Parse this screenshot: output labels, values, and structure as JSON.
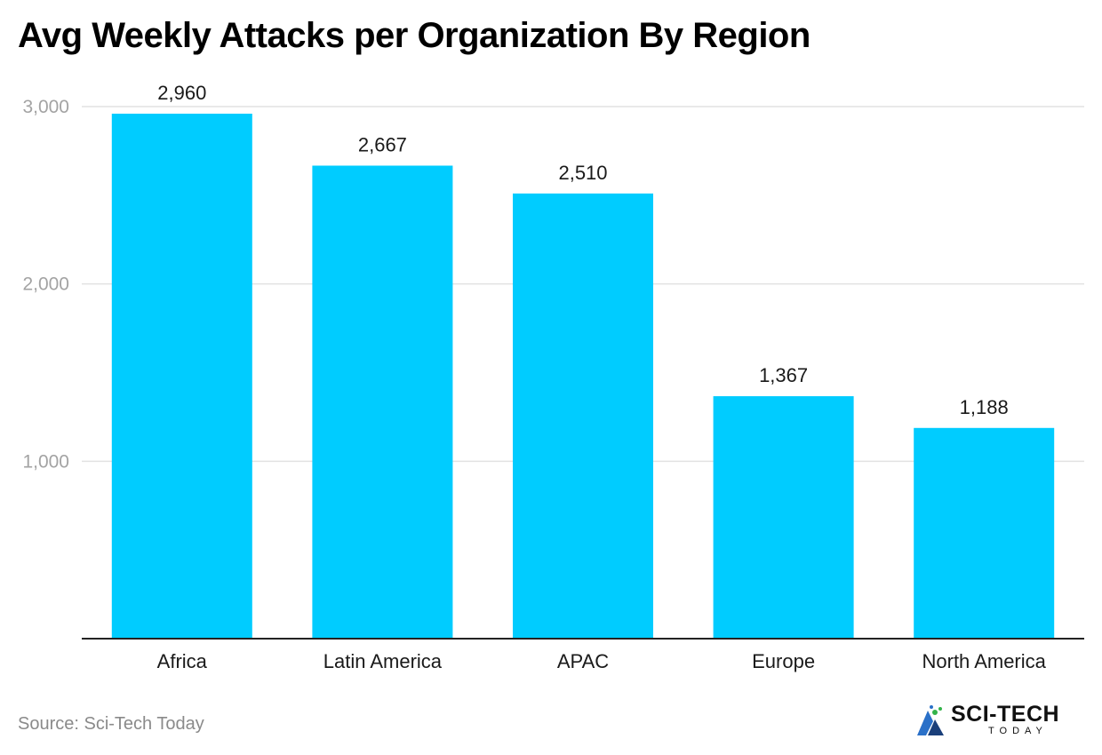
{
  "chart_data": {
    "type": "bar",
    "title": "Avg Weekly Attacks per Organization By Region",
    "categories": [
      "Africa",
      "Latin America",
      "APAC",
      "Europe",
      "North America"
    ],
    "values": [
      2960,
      2667,
      2510,
      1367,
      1188
    ],
    "value_labels": [
      "2,960",
      "2,667",
      "2,510",
      "1,367",
      "1,188"
    ],
    "yticks": [
      1000,
      2000,
      3000
    ],
    "ytick_labels": [
      "1,000",
      "2,000",
      "3,000"
    ],
    "ylim": [
      0,
      3000
    ],
    "xlabel": "",
    "ylabel": "",
    "grid": true,
    "bar_color": "#00ccff"
  },
  "source": "Source: Sci-Tech Today",
  "brand": {
    "name": "SCI-TECH",
    "sub": "TODAY",
    "icon": "sci-tech-today-logo-icon",
    "colors": [
      "#2a70c8",
      "#33b34a",
      "#1a3f7a"
    ]
  }
}
